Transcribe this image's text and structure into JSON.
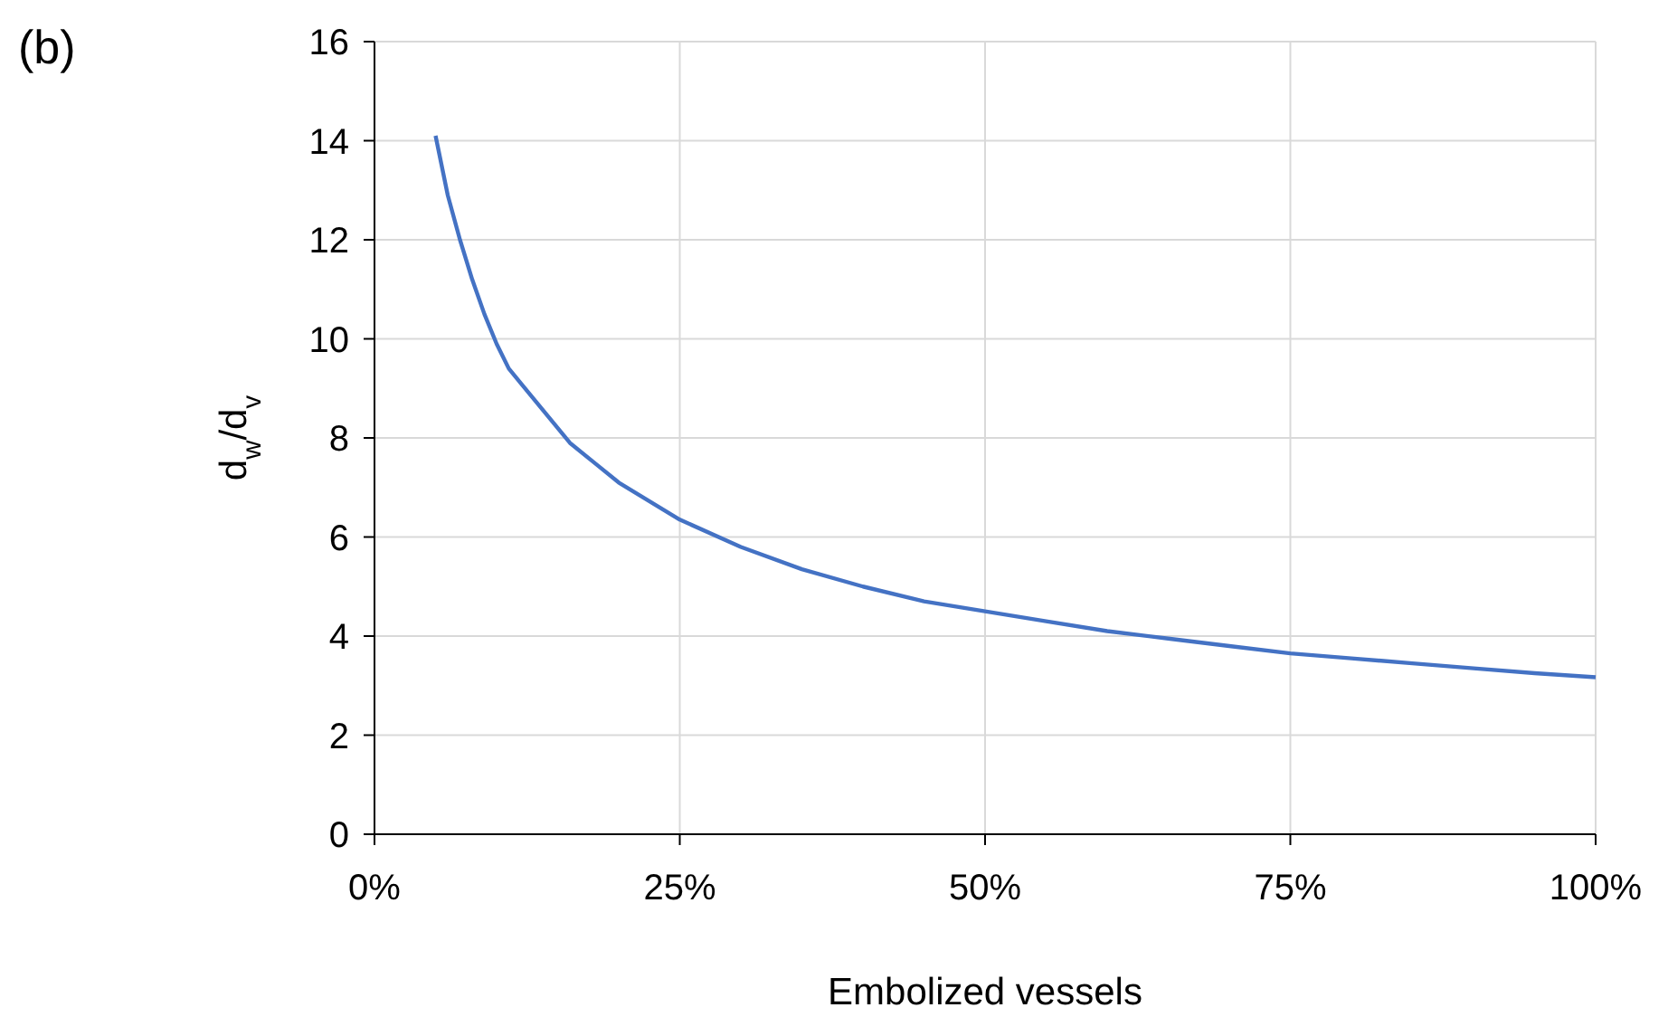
{
  "chart_data": {
    "type": "line",
    "title": "(b)",
    "xlabel": "Embolized vessels",
    "ylabel": "d$_{w}$/d$_{v}$",
    "x": [
      5,
      6,
      7,
      8,
      9,
      10,
      11,
      12,
      14,
      16,
      18,
      20,
      25,
      30,
      35,
      40,
      45,
      50,
      55,
      60,
      65,
      70,
      75,
      80,
      85,
      90,
      95,
      100
    ],
    "series": [
      {
        "color": "#4472c4",
        "values": [
          14.1,
          12.9,
          12.0,
          11.2,
          10.5,
          9.9,
          9.4,
          9.1,
          8.5,
          7.9,
          7.5,
          7.1,
          6.35,
          5.8,
          5.35,
          5.0,
          4.7,
          4.5,
          4.3,
          4.1,
          3.95,
          3.8,
          3.65,
          3.55,
          3.45,
          3.35,
          3.25,
          3.17
        ]
      }
    ],
    "xlim": [
      0,
      100
    ],
    "xticks": [
      {
        "value": 0,
        "label": "0%"
      },
      {
        "value": 25,
        "label": "25%"
      },
      {
        "value": 50,
        "label": "50%"
      },
      {
        "value": 75,
        "label": "75%"
      },
      {
        "value": 100,
        "label": "100%"
      }
    ],
    "ylim": [
      0,
      16
    ],
    "yticks": [
      0,
      2,
      4,
      6,
      8,
      10,
      12,
      14,
      16
    ],
    "grid": true,
    "marker": "none",
    "line_style": "solid"
  }
}
